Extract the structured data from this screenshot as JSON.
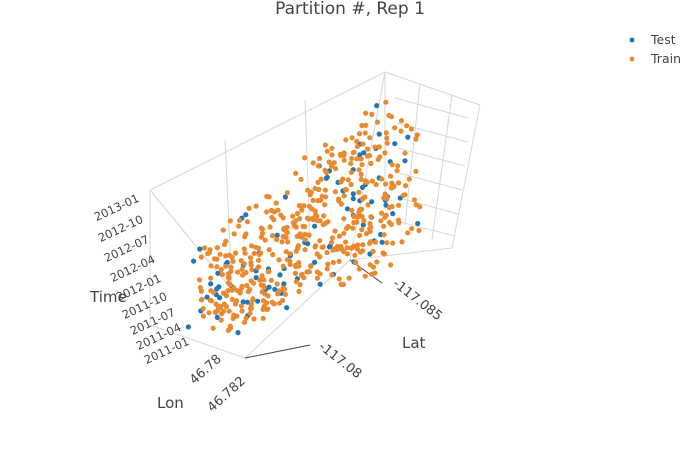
{
  "chart_data": {
    "type": "scatter",
    "title": "Partition #, Rep 1",
    "axes": {
      "x": {
        "label": "Lat",
        "ticks": [
          "-117.085",
          "-117.08"
        ]
      },
      "y": {
        "label": "Lon",
        "ticks": [
          "46.78",
          "46.782"
        ]
      },
      "z": {
        "label": "Time",
        "ticks": [
          "2011-01",
          "2011-04",
          "2011-07",
          "2011-10",
          "2012-01",
          "2012-04",
          "2012-07",
          "2012-10",
          "2013-01"
        ]
      }
    },
    "ranges": {
      "lat": [
        -117.087,
        -117.079
      ],
      "lon": [
        46.7785,
        46.7825
      ],
      "time": [
        "2010-12",
        "2013-02"
      ]
    },
    "grid": true,
    "legend_position": "top-right",
    "series": [
      {
        "name": "Test",
        "color": "#1f77b4",
        "count_estimate": 90
      },
      {
        "name": "Train",
        "color": "#e88a2f",
        "count_estimate": 480
      }
    ]
  }
}
